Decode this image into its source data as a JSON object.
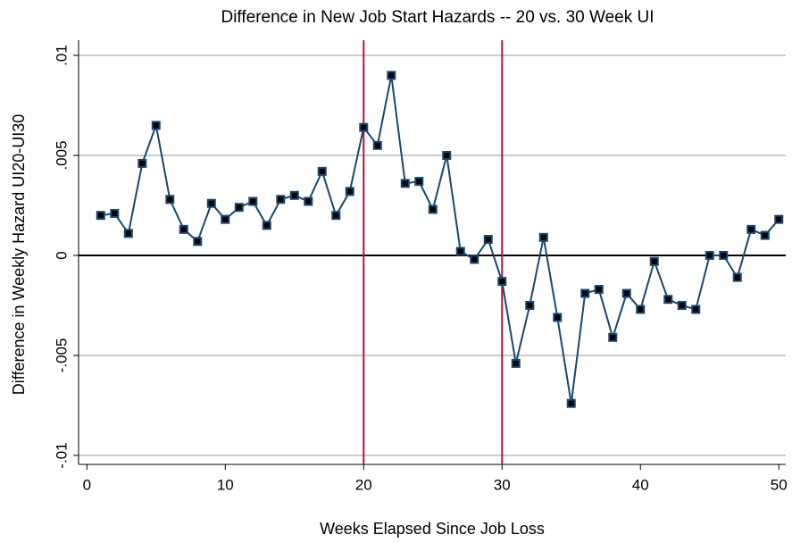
{
  "chart_data": {
    "type": "line",
    "title": "Difference in New Job Start Hazards -- 20 vs. 30 Week UI",
    "x_label": "Weeks Elapsed Since Job Loss",
    "y_label": "Difference in Weekly Hazard UI20-UI30",
    "x": [
      1,
      2,
      3,
      4,
      5,
      6,
      7,
      8,
      9,
      10,
      11,
      12,
      13,
      14,
      15,
      16,
      17,
      18,
      19,
      20,
      21,
      22,
      23,
      24,
      25,
      26,
      27,
      28,
      29,
      30,
      31,
      32,
      33,
      34,
      35,
      36,
      37,
      38,
      39,
      40,
      41,
      42,
      43,
      44,
      45,
      46,
      47,
      48,
      49,
      50
    ],
    "series": [
      {
        "name": "UI20-UI30",
        "color": "#1a476f",
        "values": [
          0.002,
          0.0021,
          0.0011,
          0.0046,
          0.0065,
          0.0028,
          0.0013,
          0.0007,
          0.0026,
          0.0018,
          0.0024,
          0.0027,
          0.0015,
          0.0028,
          0.003,
          0.0027,
          0.0042,
          0.002,
          0.0032,
          0.0064,
          0.0055,
          0.009,
          0.0036,
          0.0037,
          0.0023,
          0.005,
          0.0002,
          -0.0002,
          0.0008,
          -0.0013,
          -0.0054,
          -0.0025,
          0.0009,
          -0.0031,
          -0.0074,
          -0.0019,
          -0.0017,
          -0.0041,
          -0.0019,
          -0.0027,
          -0.0003,
          -0.0022,
          -0.0025,
          -0.0027,
          0,
          0,
          -0.0011,
          0.0013,
          0.001,
          0.0018
        ]
      }
    ],
    "xlim": [
      -0.6,
      50.5
    ],
    "xticks": [
      0,
      10,
      20,
      30,
      40,
      50
    ],
    "ylim": [
      -0.01045,
      0.01076
    ],
    "yticks": [
      {
        "value": 0.01,
        "label": ".01"
      },
      {
        "value": 0.005,
        "label": ".005"
      },
      0,
      {
        "value": -0.005,
        "label": "-.005"
      },
      {
        "value": -0.01,
        "label": "-.01"
      }
    ],
    "grid": true,
    "xlines": [
      20,
      30
    ],
    "xline_color": "#b0153c",
    "ylines": [
      0
    ],
    "yline_color": "#000000"
  }
}
